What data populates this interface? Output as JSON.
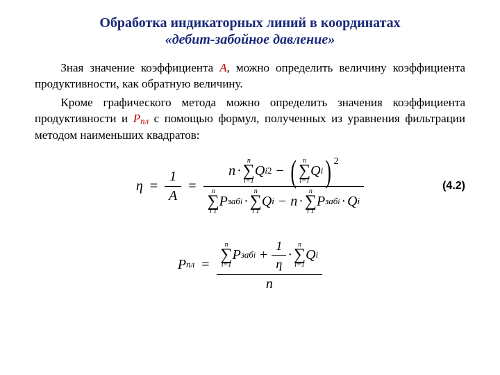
{
  "title": "Обработка индикаторных линий в координатах",
  "subtitle": "«дебит-забойное давление»",
  "para1_a": "Зная значение коэффициента ",
  "sym_A": "A",
  "para1_b": ", можно определить величину коэффициента продуктивности, как обратную величину.",
  "para2_a": "Кроме графического метода можно определить значения коэффициента продуктивности и ",
  "sym_P": "P",
  "sym_P_sub": "пл",
  "para2_b": " с помощью формул, полученных из уравнения фильтрации методом наименьших квадратов:",
  "eq_num": "(4.2)",
  "eta": "η",
  "eq": "=",
  "one": "1",
  "A": "A",
  "n": "n",
  "dot": "·",
  "minus": "−",
  "plus": "+",
  "sigma_top": "n",
  "sigma_bot": "i=1",
  "sigma_bot_nobreak": "i  1",
  "Q": "Q",
  "Qi_sub": "i",
  "sq": "2",
  "Pzab": "P",
  "zab": "заб",
  "Ppl": "P",
  "pl": "пл",
  "colors": {
    "title": "#1a2a7a",
    "accent": "#c00000",
    "text": "#000000",
    "bg": "#ffffff"
  },
  "fonts": {
    "body": "Times New Roman",
    "eqnum": "Arial",
    "title_size": 20,
    "body_size": 17,
    "formula_size": 20
  }
}
